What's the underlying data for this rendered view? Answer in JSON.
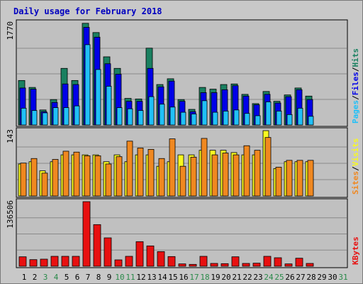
{
  "title": "Daily usage for February 2018",
  "colors": {
    "hits": "#1a8060",
    "files": "#0000e8",
    "pages": "#20c0f8",
    "visits": "#f8f820",
    "sites": "#f08820",
    "kbytes": "#e81010",
    "weekend_day": "#2a8a4a",
    "weekday": "#000000",
    "panel_bg": "#c0c0c0",
    "frame_bg": "#c8c8c8"
  },
  "panels": {
    "top": {
      "max_label": "1770",
      "legend": [
        "Pages",
        "/",
        "Files",
        "/",
        "Hits"
      ]
    },
    "middle": {
      "max_label": "143",
      "legend": [
        "Sites",
        "/",
        "Visits"
      ]
    },
    "bottom": {
      "max_label": "136506",
      "legend": [
        "KBytes"
      ]
    }
  },
  "chart_data": {
    "type": "bar",
    "title": "Daily usage for February 2018",
    "categories": [
      "1",
      "2",
      "3",
      "4",
      "5",
      "6",
      "7",
      "8",
      "9",
      "10",
      "11",
      "12",
      "13",
      "14",
      "15",
      "16",
      "17",
      "18",
      "19",
      "20",
      "21",
      "22",
      "23",
      "24",
      "25",
      "26",
      "27",
      "28",
      "29",
      "30",
      "31"
    ],
    "weekend_days": [
      "3",
      "4",
      "10",
      "11",
      "17",
      "18",
      "24",
      "25",
      "31"
    ],
    "hits_files_pages": {
      "ymax": 1770,
      "series": [
        {
          "name": "Hits",
          "values": [
            770,
            650,
            260,
            440,
            980,
            770,
            1760,
            1600,
            1180,
            980,
            460,
            450,
            1330,
            700,
            800,
            440,
            270,
            650,
            620,
            700,
            710,
            530,
            370,
            580,
            410,
            520,
            640,
            500,
            0,
            0,
            0
          ]
        },
        {
          "name": "Files",
          "values": [
            640,
            620,
            230,
            390,
            710,
            700,
            1690,
            1520,
            1060,
            880,
            410,
            410,
            980,
            660,
            760,
            410,
            230,
            560,
            560,
            610,
            680,
            500,
            350,
            530,
            380,
            490,
            610,
            440,
            0,
            0,
            0
          ]
        },
        {
          "name": "Pages",
          "values": [
            290,
            250,
            210,
            300,
            300,
            330,
            1390,
            960,
            670,
            300,
            280,
            250,
            490,
            360,
            310,
            220,
            190,
            420,
            220,
            240,
            260,
            200,
            160,
            400,
            240,
            180,
            290,
            150,
            0,
            0,
            0
          ]
        }
      ]
    },
    "visits_sites": {
      "ymax": 143,
      "series": [
        {
          "name": "Visits",
          "values": [
            70,
            75,
            55,
            75,
            90,
            90,
            90,
            90,
            75,
            90,
            75,
            90,
            90,
            65,
            75,
            90,
            90,
            100,
            100,
            100,
            95,
            90,
            90,
            143,
            60,
            75,
            75,
            75,
            0,
            0,
            0
          ]
        },
        {
          "name": "Sites",
          "values": [
            72,
            82,
            50,
            80,
            98,
            96,
            88,
            88,
            70,
            86,
            120,
            105,
            102,
            82,
            125,
            65,
            85,
            126,
            90,
            94,
            90,
            110,
            100,
            128,
            63,
            78,
            78,
            78,
            0,
            0,
            0
          ]
        }
      ]
    },
    "kbytes": {
      "ymax": 136506,
      "series": [
        {
          "name": "KBytes",
          "values": [
            20000,
            14000,
            15000,
            21000,
            21000,
            21000,
            136506,
            88000,
            60000,
            13500,
            21000,
            52000,
            43000,
            31000,
            20500,
            5000,
            4000,
            21000,
            6000,
            5500,
            20000,
            6000,
            6500,
            21000,
            18000,
            5000,
            17000,
            6000,
            0,
            0,
            0
          ]
        }
      ]
    }
  }
}
